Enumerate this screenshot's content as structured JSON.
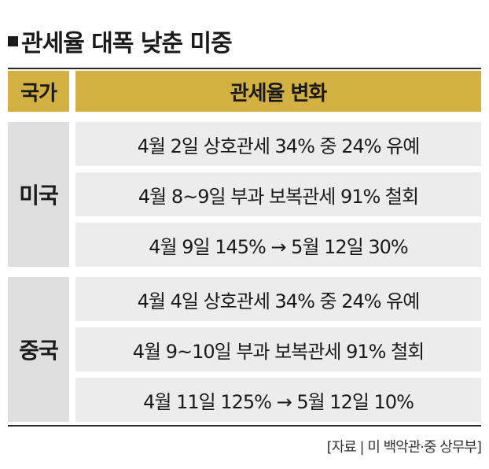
{
  "title": "관세율 대폭 낮춘 미중",
  "table": {
    "headers": [
      "국가",
      "관세율 변화"
    ],
    "groups": [
      {
        "country": "미국",
        "rows": [
          "4월 2일 상호관세 34% 중 24% 유예",
          "4월 8~9일 부과 보복관세 91% 철회",
          "4월 9일 145% → 5월 12일 30%"
        ]
      },
      {
        "country": "중국",
        "rows": [
          "4월 4일 상호관세 34% 중 24% 유예",
          "4월 9~10일 부과 보복관세 91% 철회",
          "4월 11일 125% → 5월 12일 10%"
        ]
      }
    ]
  },
  "source": "[자료 | 미 백악관·중 상무부]",
  "colors": {
    "header_bg": "#d3b042",
    "country_bg": "#dedede",
    "row_bg": "#ececec"
  }
}
